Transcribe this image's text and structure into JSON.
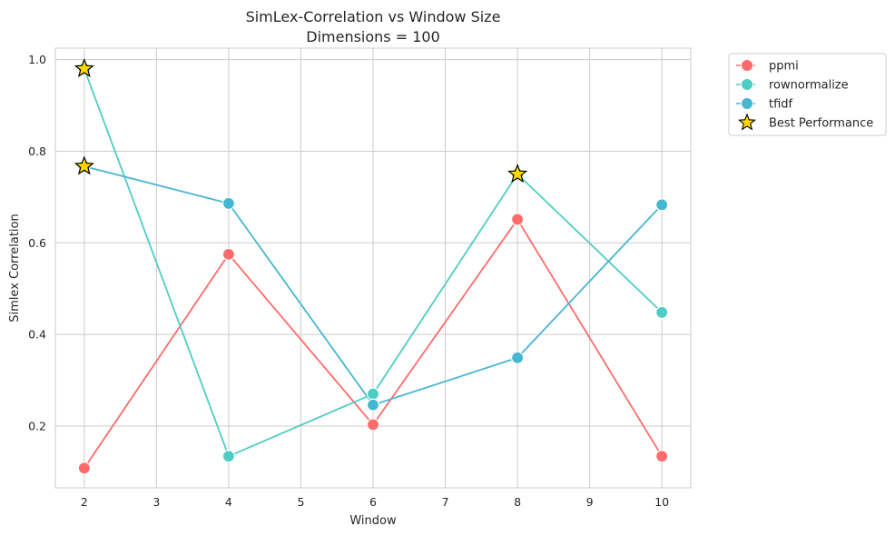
{
  "chart_data": {
    "type": "line",
    "title": "SimLex-Correlation vs Window Size",
    "subtitle": "Dimensions = 100",
    "xlabel": "Window",
    "ylabel": "Simlex Correlation",
    "x": [
      2,
      4,
      6,
      8,
      10
    ],
    "xlim": [
      1.6,
      10.4
    ],
    "ylim": [
      0.065,
      1.025
    ],
    "xticks": [
      2,
      3,
      4,
      5,
      6,
      7,
      8,
      9,
      10
    ],
    "yticks": [
      0.2,
      0.4,
      0.6,
      0.8,
      1.0
    ],
    "ytick_labels": [
      "0.2",
      "0.4",
      "0.6",
      "0.8",
      "1.0"
    ],
    "grid": true,
    "legend_position": "outside-top-right",
    "series": [
      {
        "name": "ppmi",
        "color": "#ff6b6b",
        "values": [
          0.108,
          0.575,
          0.203,
          0.651,
          0.134
        ]
      },
      {
        "name": "rownormalize",
        "color": "#4ecdc4",
        "values": [
          0.98,
          0.134,
          0.27,
          0.75,
          0.448
        ]
      },
      {
        "name": "tfidf",
        "color": "#45b7d1",
        "values": [
          0.767,
          0.686,
          0.246,
          0.349,
          0.683
        ]
      }
    ],
    "best_points": [
      {
        "x": 2,
        "y": 0.98
      },
      {
        "x": 2,
        "y": 0.767
      },
      {
        "x": 8,
        "y": 0.75
      }
    ],
    "best_label": "Best Performance",
    "best_color": "#ffd700"
  }
}
